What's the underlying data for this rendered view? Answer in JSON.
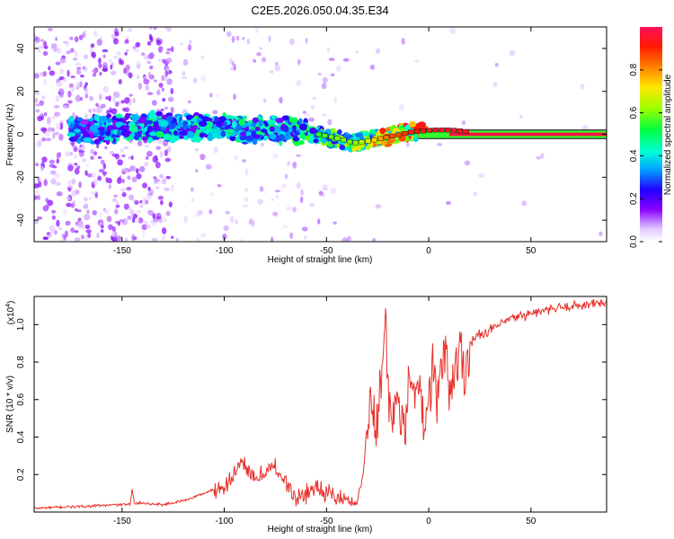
{
  "title": "C2E5.2026.050.04.35.E34",
  "chart_data": [
    {
      "type": "heatmap",
      "name": "spectrogram",
      "xlabel": "Height of straight line (km)",
      "ylabel": "Frequency (Hz)",
      "xlim": [
        -193,
        87
      ],
      "ylim": [
        -50,
        50
      ],
      "xticks": [
        -150,
        -100,
        -50,
        0,
        50
      ],
      "yticks": [
        -40,
        -20,
        0,
        20,
        40
      ],
      "colorbar": {
        "label": "Normalized spectral amplitude",
        "range": [
          0,
          1
        ],
        "ticks": [
          "0.0",
          "0.2",
          "0.4",
          "0.6",
          "0.8"
        ],
        "tick_values": [
          0,
          0.2,
          0.4,
          0.6,
          0.8
        ]
      },
      "ridge": {
        "description_points_x": [
          -170,
          -150,
          -130,
          -110,
          -90,
          -70,
          -55,
          -45,
          -38,
          -30,
          -20,
          -10,
          0,
          10,
          20,
          40,
          87
        ],
        "frequency_y": [
          2,
          3,
          4,
          3,
          2,
          2,
          0,
          -2,
          -4,
          -3,
          -1,
          1,
          2,
          2,
          1,
          0,
          0
        ],
        "amplitude": [
          0.35,
          0.4,
          0.45,
          0.45,
          0.45,
          0.45,
          0.55,
          0.6,
          0.6,
          0.7,
          0.85,
          0.9,
          0.95,
          0.95,
          0.95,
          1.0,
          1.0
        ]
      }
    },
    {
      "type": "line",
      "name": "snr",
      "xlabel": "Height of straight line (km)",
      "ylabel": "SNR (10 * v/v)",
      "yscale_label": "(x10",
      "yscale_exp": "4",
      "yscale_close": ")",
      "xlim": [
        -193,
        87
      ],
      "ylim": [
        0,
        1.15
      ],
      "xticks": [
        -150,
        -100,
        -50,
        0,
        50
      ],
      "yticks": [
        0.2,
        0.4,
        0.6,
        0.8,
        1.0
      ],
      "ytick_labels": [
        "0.2",
        "0.4",
        "0.6",
        "0.8",
        "1.0"
      ],
      "color": "#e8302a",
      "series_points": {
        "x": [
          -193,
          -170,
          -150,
          -146,
          -145,
          -144,
          -130,
          -120,
          -110,
          -100,
          -95,
          -90,
          -85,
          -80,
          -75,
          -70,
          -65,
          -60,
          -55,
          -50,
          -45,
          -40,
          -35,
          -32,
          -30,
          -28,
          -26,
          -25,
          -24,
          -22,
          -21,
          -20,
          -18,
          -15,
          -12,
          -10,
          -8,
          -6,
          -4,
          -2,
          0,
          2,
          4,
          6,
          8,
          10,
          12,
          15,
          18,
          20,
          25,
          30,
          35,
          40,
          50,
          60,
          70,
          80,
          87
        ],
        "y": [
          0.02,
          0.03,
          0.04,
          0.04,
          0.12,
          0.05,
          0.04,
          0.06,
          0.1,
          0.14,
          0.2,
          0.26,
          0.16,
          0.22,
          0.24,
          0.16,
          0.06,
          0.1,
          0.14,
          0.1,
          0.08,
          0.06,
          0.05,
          0.2,
          0.5,
          0.58,
          0.4,
          0.55,
          0.7,
          0.9,
          0.99,
          0.6,
          0.48,
          0.65,
          0.38,
          0.62,
          0.8,
          0.58,
          0.68,
          0.42,
          0.6,
          0.82,
          0.55,
          0.75,
          0.9,
          0.66,
          0.72,
          0.86,
          0.77,
          0.9,
          0.95,
          0.97,
          1.0,
          1.03,
          1.06,
          1.08,
          1.1,
          1.11,
          1.12
        ]
      }
    }
  ]
}
